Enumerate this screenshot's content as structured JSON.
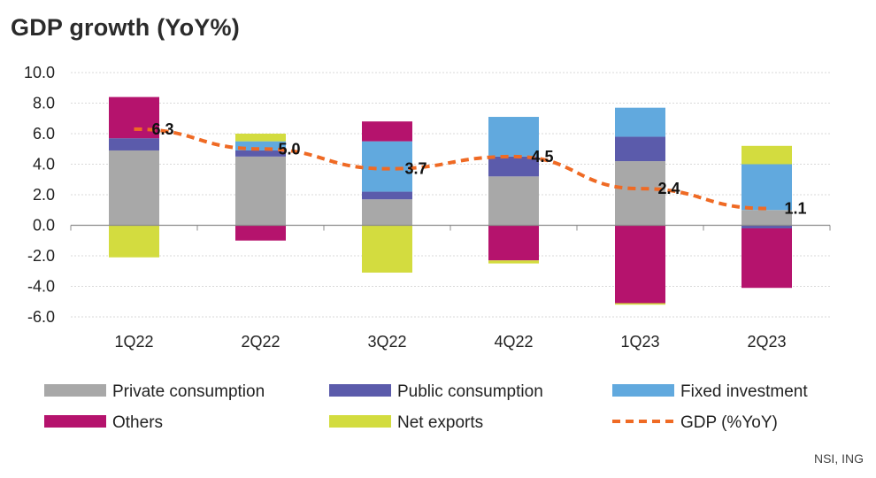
{
  "title": "GDP growth (YoY%)",
  "source": "NSI, ING",
  "chart_data": {
    "type": "bar",
    "stacked": true,
    "categories": [
      "1Q22",
      "2Q22",
      "3Q22",
      "4Q22",
      "1Q23",
      "2Q23"
    ],
    "ylim": [
      -6.0,
      10.0
    ],
    "yticks": [
      "10.0",
      "8.0",
      "6.0",
      "4.0",
      "2.0",
      "0.0",
      "-2.0",
      "-4.0",
      "-6.0"
    ],
    "grid": true,
    "legend_position": "bottom",
    "series": [
      {
        "name": "Private consumption",
        "color": "#a8a8a8",
        "values": [
          4.9,
          4.5,
          1.7,
          3.2,
          4.2,
          1.0
        ]
      },
      {
        "name": "Public consumption",
        "color": "#5b5bab",
        "values": [
          0.8,
          0.4,
          0.5,
          1.3,
          1.6,
          -0.2
        ]
      },
      {
        "name": "Fixed investment",
        "color": "#61a9de",
        "values": [
          0.0,
          0.6,
          3.3,
          2.6,
          1.9,
          3.0
        ]
      },
      {
        "name": "Others",
        "color": "#b5136d",
        "values": [
          2.7,
          -1.0,
          1.3,
          -2.3,
          -5.1,
          -3.9
        ]
      },
      {
        "name": "Net exports",
        "color": "#d3dc3f",
        "values": [
          -2.1,
          0.5,
          -3.1,
          -0.2,
          -0.1,
          1.2
        ]
      }
    ],
    "line": {
      "name": "GDP (%YoY)",
      "color": "#ef6a24",
      "values": [
        6.3,
        5.0,
        3.7,
        4.5,
        2.4,
        1.1
      ],
      "labels": [
        "6.3",
        "5.0",
        "3.7",
        "4.5",
        "2.4",
        "1.1"
      ]
    }
  }
}
